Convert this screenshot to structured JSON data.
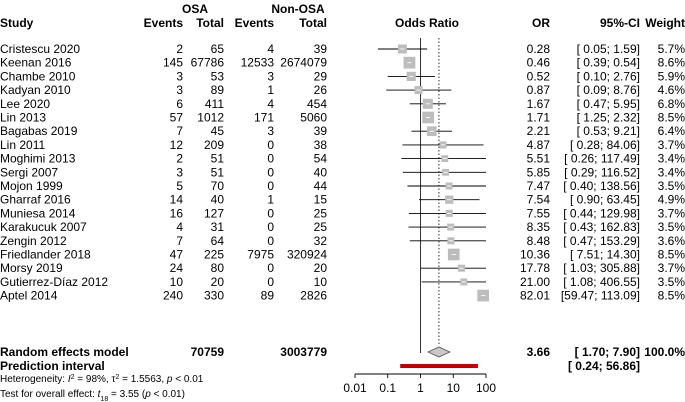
{
  "header": {
    "study": "Study",
    "group1": "OSA",
    "group2": "Non-OSA",
    "events1": "Events",
    "total1": "Total",
    "events2": "Events",
    "total2": "Total",
    "odds_ratio": "Odds Ratio",
    "or": "OR",
    "ci": "95%-CI",
    "weight": "Weight"
  },
  "chart_data": {
    "type": "forest",
    "xscale": "log",
    "xlim": [
      0.01,
      100
    ],
    "xticks": [
      "0.01",
      "0.1",
      "1",
      "10",
      "100"
    ],
    "studies": [
      {
        "name": "Cristescu 2020",
        "e1": "2",
        "n1": "65",
        "e2": "4",
        "n2": "39",
        "or": 0.28,
        "lo": 0.05,
        "hi": 1.59,
        "or_txt": "0.28",
        "ci_txt": "[ 0.05;   1.59]",
        "w_txt": "5.7%",
        "w": 5.7
      },
      {
        "name": "Keenan 2016",
        "e1": "145",
        "n1": "67786",
        "e2": "12533",
        "n2": "2674079",
        "or": 0.46,
        "lo": 0.39,
        "hi": 0.54,
        "or_txt": "0.46",
        "ci_txt": "[ 0.39;   0.54]",
        "w_txt": "8.6%",
        "w": 8.6
      },
      {
        "name": "Chambe 2010",
        "e1": "3",
        "n1": "53",
        "e2": "3",
        "n2": "29",
        "or": 0.52,
        "lo": 0.1,
        "hi": 2.76,
        "or_txt": "0.52",
        "ci_txt": "[ 0.10;   2.76]",
        "w_txt": "5.9%",
        "w": 5.9
      },
      {
        "name": "Kadyan 2010",
        "e1": "3",
        "n1": "89",
        "e2": "1",
        "n2": "26",
        "or": 0.87,
        "lo": 0.09,
        "hi": 8.76,
        "or_txt": "0.87",
        "ci_txt": "[ 0.09;   8.76]",
        "w_txt": "4.6%",
        "w": 4.6
      },
      {
        "name": "Lee 2020",
        "e1": "6",
        "n1": "411",
        "e2": "4",
        "n2": "454",
        "or": 1.67,
        "lo": 0.47,
        "hi": 5.95,
        "or_txt": "1.67",
        "ci_txt": "[ 0.47;   5.95]",
        "w_txt": "6.8%",
        "w": 6.8
      },
      {
        "name": "Lin 2013",
        "e1": "57",
        "n1": "1012",
        "e2": "171",
        "n2": "5060",
        "or": 1.71,
        "lo": 1.25,
        "hi": 2.32,
        "or_txt": "1.71",
        "ci_txt": "[ 1.25;   2.32]",
        "w_txt": "8.5%",
        "w": 8.5
      },
      {
        "name": "Bagabas 2019",
        "e1": "7",
        "n1": "45",
        "e2": "3",
        "n2": "39",
        "or": 2.21,
        "lo": 0.53,
        "hi": 9.21,
        "or_txt": "2.21",
        "ci_txt": "[ 0.53;   9.21]",
        "w_txt": "6.4%",
        "w": 6.4
      },
      {
        "name": "Lin 2011",
        "e1": "12",
        "n1": "209",
        "e2": "0",
        "n2": "38",
        "or": 4.87,
        "lo": 0.28,
        "hi": 84.06,
        "or_txt": "4.87",
        "ci_txt": "[ 0.28;  84.06]",
        "w_txt": "3.7%",
        "w": 3.7
      },
      {
        "name": "Moghimi 2013",
        "e1": "2",
        "n1": "51",
        "e2": "0",
        "n2": "54",
        "or": 5.51,
        "lo": 0.26,
        "hi": 117.49,
        "or_txt": "5.51",
        "ci_txt": "[ 0.26; 117.49]",
        "w_txt": "3.4%",
        "w": 3.4
      },
      {
        "name": "Sergi 2007",
        "e1": "3",
        "n1": "51",
        "e2": "0",
        "n2": "40",
        "or": 5.85,
        "lo": 0.29,
        "hi": 116.52,
        "or_txt": "5.85",
        "ci_txt": "[ 0.29; 116.52]",
        "w_txt": "3.4%",
        "w": 3.4
      },
      {
        "name": "Mojon 1999",
        "e1": "5",
        "n1": "70",
        "e2": "0",
        "n2": "44",
        "or": 7.47,
        "lo": 0.4,
        "hi": 138.56,
        "or_txt": "7.47",
        "ci_txt": "[ 0.40; 138.56]",
        "w_txt": "3.5%",
        "w": 3.5
      },
      {
        "name": "Gharraf 2016",
        "e1": "14",
        "n1": "40",
        "e2": "1",
        "n2": "15",
        "or": 7.54,
        "lo": 0.9,
        "hi": 63.45,
        "or_txt": "7.54",
        "ci_txt": "[ 0.90;  63.45]",
        "w_txt": "4.9%",
        "w": 4.9
      },
      {
        "name": "Muniesa 2014",
        "e1": "16",
        "n1": "127",
        "e2": "0",
        "n2": "25",
        "or": 7.55,
        "lo": 0.44,
        "hi": 129.98,
        "or_txt": "7.55",
        "ci_txt": "[ 0.44; 129.98]",
        "w_txt": "3.7%",
        "w": 3.7
      },
      {
        "name": "Karakucuk 2007",
        "e1": "4",
        "n1": "31",
        "e2": "0",
        "n2": "25",
        "or": 8.35,
        "lo": 0.43,
        "hi": 162.83,
        "or_txt": "8.35",
        "ci_txt": "[ 0.43; 162.83]",
        "w_txt": "3.5%",
        "w": 3.5
      },
      {
        "name": "Zengin 2012",
        "e1": "7",
        "n1": "64",
        "e2": "0",
        "n2": "32",
        "or": 8.48,
        "lo": 0.47,
        "hi": 153.29,
        "or_txt": "8.48",
        "ci_txt": "[ 0.47; 153.29]",
        "w_txt": "3.6%",
        "w": 3.6
      },
      {
        "name": "Friedlander 2018",
        "e1": "47",
        "n1": "225",
        "e2": "7975",
        "n2": "320924",
        "or": 10.36,
        "lo": 7.51,
        "hi": 14.3,
        "or_txt": "10.36",
        "ci_txt": "[ 7.51;  14.30]",
        "w_txt": "8.5%",
        "w": 8.5
      },
      {
        "name": "Morsy 2019",
        "e1": "24",
        "n1": "80",
        "e2": "0",
        "n2": "20",
        "or": 17.78,
        "lo": 1.03,
        "hi": 305.88,
        "or_txt": "17.78",
        "ci_txt": "[ 1.03; 305.88]",
        "w_txt": "3.7%",
        "w": 3.7
      },
      {
        "name": "Gutierrez-Díaz 2012",
        "e1": "10",
        "n1": "20",
        "e2": "0",
        "n2": "10",
        "or": 21.0,
        "lo": 1.08,
        "hi": 406.55,
        "or_txt": "21.00",
        "ci_txt": "[ 1.08; 406.55]",
        "w_txt": "3.5%",
        "w": 3.5
      },
      {
        "name": "Aptel 2014",
        "e1": "240",
        "n1": "330",
        "e2": "89",
        "n2": "2826",
        "or": 82.01,
        "lo": 59.47,
        "hi": 113.09,
        "or_txt": "82.01",
        "ci_txt": "[59.47; 113.09]",
        "w_txt": "8.5%",
        "w": 8.5
      }
    ],
    "pooled": {
      "label": "Random effects model",
      "n1": "70759",
      "n2": "3003779",
      "or": 3.66,
      "lo": 1.7,
      "hi": 7.9,
      "or_txt": "3.66",
      "ci_txt": "[ 1.70;   7.90]",
      "w_txt": "100.0%"
    },
    "prediction": {
      "label": "Prediction interval",
      "lo": 0.24,
      "hi": 56.86,
      "ci_txt": "[ 0.24;  56.86]"
    },
    "heterogeneity": {
      "prefix": "Heterogeneity: ",
      "i2_sym": "I",
      "i2_eq": " = 98%, ",
      "tau2_sym": "τ",
      "tau2_eq": " = 1.5563, ",
      "p_sym": "p",
      "p_eq": " < 0.01"
    },
    "overall_test": {
      "prefix": "Test for overall effect: ",
      "t_sym": "t",
      "t_sub": "18",
      "t_eq": " = 3.55 (",
      "p_sym": "p",
      "p_eq": " < 0.01)"
    },
    "colors": {
      "square": "#bdbdbd",
      "diamond": "#c8c8c8",
      "prediction": "#c00000",
      "line": "#000000"
    }
  }
}
